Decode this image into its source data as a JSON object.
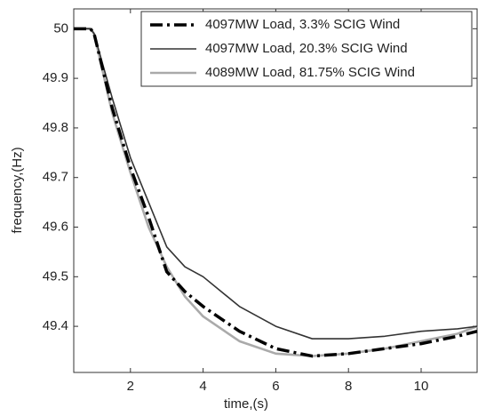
{
  "chart_data": {
    "type": "line",
    "xlabel": "time,(s)",
    "ylabel": "frequency,(Hz)",
    "x": [
      0.44,
      0.9,
      1.0,
      1.5,
      2,
      2.5,
      3,
      3.5,
      4,
      5,
      6,
      7,
      8,
      9,
      10,
      11,
      11.54
    ],
    "series": [
      {
        "name": "4097MW Load, 3.3% SCIG Wind",
        "color": "#000000",
        "width": 3.5,
        "dash": "dashdot",
        "values": [
          50,
          50,
          49.99,
          49.84,
          49.72,
          49.62,
          49.51,
          49.47,
          49.44,
          49.39,
          49.355,
          49.34,
          49.345,
          49.355,
          49.365,
          49.38,
          49.39
        ]
      },
      {
        "name": "4097MW Load, 20.3% SCIG Wind",
        "color": "#333333",
        "width": 1.6,
        "dash": "solid",
        "values": [
          50,
          50,
          49.99,
          49.86,
          49.74,
          49.65,
          49.56,
          49.52,
          49.5,
          49.44,
          49.4,
          49.375,
          49.375,
          49.38,
          49.39,
          49.395,
          49.4
        ]
      },
      {
        "name": "4089MW Load, 81.75% SCIG Wind",
        "color": "#aaaaaa",
        "width": 2.6,
        "dash": "solid",
        "values": [
          50,
          50,
          49.99,
          49.83,
          49.71,
          49.6,
          49.52,
          49.46,
          49.42,
          49.37,
          49.345,
          49.34,
          49.345,
          49.355,
          49.37,
          49.385,
          49.4
        ]
      }
    ],
    "xlim": [
      0.44,
      11.54
    ],
    "ylim": [
      49.307,
      50.04
    ],
    "xticks": [
      2,
      4,
      6,
      8,
      10
    ],
    "yticks": [
      49.4,
      49.5,
      49.6,
      49.7,
      49.8,
      49.9,
      50
    ],
    "grid": false,
    "legend": "upper right"
  }
}
